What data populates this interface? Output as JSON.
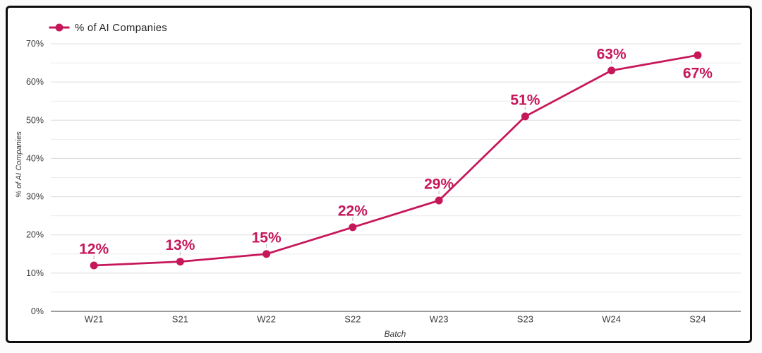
{
  "legend": {
    "label": "% of AI Companies"
  },
  "chart_data": {
    "type": "line",
    "title": "",
    "categories": [
      "W21",
      "S21",
      "W22",
      "S22",
      "W23",
      "S23",
      "W24",
      "S24"
    ],
    "series": [
      {
        "name": "% of AI Companies",
        "values": [
          12,
          13,
          15,
          22,
          29,
          51,
          63,
          67
        ]
      }
    ],
    "point_labels": [
      "12%",
      "13%",
      "15%",
      "22%",
      "29%",
      "51%",
      "63%",
      "67%"
    ],
    "label_positions": [
      "above",
      "above",
      "above",
      "above",
      "above",
      "above",
      "above",
      "below"
    ],
    "xlabel": "Batch",
    "ylabel": "% of AI Companies",
    "ylim": [
      0,
      70
    ],
    "yticks": [
      0,
      10,
      20,
      30,
      40,
      50,
      60,
      70
    ],
    "ytick_labels": [
      "0%",
      "10%",
      "20%",
      "30%",
      "40%",
      "50%",
      "60%",
      "70%"
    ],
    "minor_grid_step": 5,
    "grid": true,
    "legend_position": "top-left",
    "colors": {
      "line": "#C6175A",
      "point": "#C6175A",
      "data_label": "#C6175A",
      "grid_major": "#dcdcdc",
      "grid_minor": "#ebebeb",
      "axis_line": "#7e7e7e",
      "tick_text": "#3c3c3c",
      "legend_text": "#262626",
      "leader_line": "#c8c8c8"
    }
  }
}
